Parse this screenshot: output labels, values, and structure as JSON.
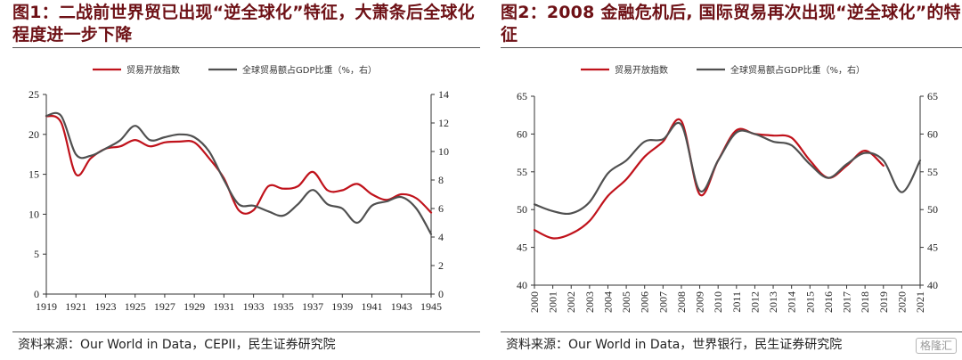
{
  "charts": [
    {
      "title": "图1：二战前世界贸已出现“逆全球化”特征，大萧条后全球化程度进一步下降",
      "source": "资料来源：Our World in Data，CEPII，民生证券研究院"
    },
    {
      "title": "图2：2008 金融危机后, 国际贸易再次出现“逆全球化”的特征",
      "source": "资料来源：Our World in Data，世界银行，民生证券研究院"
    }
  ],
  "watermark": "格隆汇",
  "colors": {
    "trade_openness": "#c0121b",
    "trade_gdp": "#505050"
  },
  "chart_data": [
    {
      "type": "line",
      "legend_placement": "top",
      "grid": false,
      "x": [
        1919,
        1920,
        1921,
        1922,
        1923,
        1924,
        1925,
        1926,
        1927,
        1928,
        1929,
        1930,
        1931,
        1932,
        1933,
        1934,
        1935,
        1936,
        1937,
        1938,
        1939,
        1940,
        1941,
        1942,
        1943,
        1944,
        1945
      ],
      "xticks": [
        "1919",
        "1921",
        "1923",
        "1925",
        "1927",
        "1929",
        "1931",
        "1933",
        "1935",
        "1937",
        "1939",
        "1941",
        "1943",
        "1945"
      ],
      "xlim": [
        1919,
        1945
      ],
      "ylim_left": [
        0,
        25
      ],
      "yticks_left": [
        "0",
        "5",
        "10",
        "15",
        "20",
        "25"
      ],
      "ylim_right": [
        0,
        14
      ],
      "yticks_right": [
        "0",
        "2",
        "4",
        "6",
        "8",
        "10",
        "12",
        "14"
      ],
      "series": [
        {
          "name": "贸易开放指数",
          "axis": "left",
          "values": [
            22.3,
            21.5,
            15.0,
            17.0,
            18.2,
            18.5,
            19.3,
            18.5,
            19.0,
            19.1,
            19.0,
            17.0,
            14.5,
            10.5,
            10.5,
            13.5,
            13.2,
            13.5,
            15.3,
            13.0,
            13.0,
            13.8,
            12.5,
            11.8,
            12.5,
            12.0,
            10.2
          ]
        },
        {
          "name": "全球贸易额占GDP比重（%，右）",
          "axis": "right",
          "values": [
            12.5,
            12.5,
            9.8,
            9.7,
            10.2,
            10.8,
            11.8,
            10.8,
            11.0,
            11.2,
            11.0,
            10.0,
            8.0,
            6.3,
            6.2,
            5.8,
            5.5,
            6.3,
            7.3,
            6.3,
            6.0,
            5.0,
            6.2,
            6.5,
            6.8,
            6.0,
            4.2
          ]
        }
      ]
    },
    {
      "type": "line",
      "legend_placement": "top",
      "grid": false,
      "x": [
        2000,
        2001,
        2002,
        2003,
        2004,
        2005,
        2006,
        2007,
        2008,
        2009,
        2010,
        2011,
        2012,
        2013,
        2014,
        2015,
        2016,
        2017,
        2018,
        2019,
        2020,
        2021
      ],
      "xticks": [
        "2000",
        "2001",
        "2002",
        "2003",
        "2004",
        "2005",
        "2006",
        "2007",
        "2008",
        "2009",
        "2010",
        "2011",
        "2012",
        "2013",
        "2014",
        "2015",
        "2016",
        "2017",
        "2018",
        "2019",
        "2020",
        "2021"
      ],
      "xlim": [
        2000,
        2021
      ],
      "ylim_left": [
        40,
        65
      ],
      "yticks_left": [
        "40",
        "45",
        "50",
        "55",
        "60",
        "65"
      ],
      "ylim_right": [
        40,
        65
      ],
      "yticks_right": [
        "40",
        "45",
        "50",
        "55",
        "60",
        "65"
      ],
      "series": [
        {
          "name": "贸易开放指数",
          "axis": "left",
          "values": [
            47.3,
            46.2,
            46.8,
            48.5,
            51.8,
            54.0,
            57.0,
            59.0,
            61.7,
            52.0,
            56.5,
            60.5,
            60.0,
            59.8,
            59.5,
            56.5,
            54.2,
            55.8,
            57.8,
            55.8,
            null,
            null
          ]
        },
        {
          "name": "全球贸易额占GDP比重（%，右）",
          "axis": "right",
          "values": [
            50.7,
            49.8,
            49.5,
            51.0,
            54.8,
            56.5,
            59.0,
            59.3,
            61.2,
            52.5,
            56.5,
            60.2,
            60.0,
            59.0,
            58.5,
            56.0,
            54.2,
            56.0,
            57.5,
            56.5,
            52.3,
            56.5
          ]
        }
      ]
    }
  ]
}
